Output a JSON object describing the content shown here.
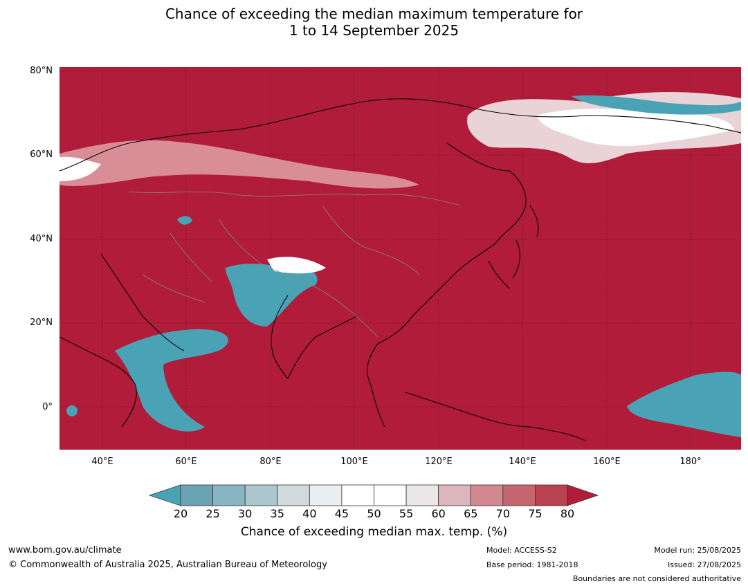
{
  "title": {
    "line1": "Chance of exceeding the median maximum temperature for",
    "line2": "1 to 14 September 2025"
  },
  "map": {
    "background_color": "#b01c3a",
    "lat_labels": [
      "80°N",
      "60°N",
      "40°N",
      "20°N",
      "0°"
    ],
    "lon_labels": [
      "40°E",
      "60°E",
      "80°E",
      "100°E",
      "120°E",
      "140°E",
      "160°E",
      "180°"
    ]
  },
  "colorbar": {
    "ticks": [
      "20",
      "25",
      "30",
      "35",
      "40",
      "45",
      "50",
      "55",
      "60",
      "65",
      "70",
      "75",
      "80"
    ],
    "colors": [
      "#6aa4b3",
      "#87b5c1",
      "#abc6cc",
      "#d1d9dc",
      "#e9eff1",
      "#ffffff",
      "#ffffff",
      "#ebe6e8",
      "#ddb5bc",
      "#d3878f",
      "#c66570",
      "#b8424f"
    ],
    "under_color": "#4aa3b5",
    "over_color": "#b01c3a",
    "label": "Chance of exceeding median max. temp. (%)"
  },
  "footer": {
    "url": "www.bom.gov.au/climate",
    "copyright": "© Commonwealth of Australia 2025, Australian Bureau of Meteorology",
    "model": "Model: ACCESS-S2",
    "base_period": "Base period: 1981-2018",
    "model_run": "Model run: 25/08/2025",
    "issued": "Issued: 27/08/2025",
    "disclaimer": "Boundaries are not considered authoritative"
  }
}
